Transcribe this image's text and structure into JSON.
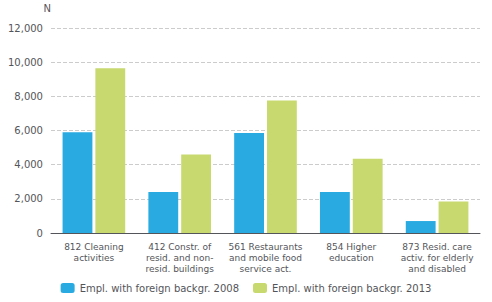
{
  "chart_data": {
    "type": "bar",
    "categories": [
      "812 Cleaning\nactivities",
      "412 Constr. of\nresid. and non-\nresid. buildings",
      "561 Restaurants\nand mobile food\nservice act.",
      "854 Higher\neducation",
      "873 Resid. care\nactiv. for elderly\nand disabled"
    ],
    "series": [
      {
        "name": "Empl. with foreign backgr. 2008",
        "color": "#29ABE2",
        "values": [
          5900,
          2400,
          5850,
          2400,
          700
        ]
      },
      {
        "name": "Empl. with foreign backgr. 2013",
        "color": "#C8D96F",
        "values": [
          9650,
          4600,
          7750,
          4350,
          1850
        ]
      }
    ],
    "ylabel": "N",
    "ylim": [
      0,
      12000
    ],
    "yticks": [
      0,
      {
        "value": 2000,
        "label": "2,000"
      },
      {
        "value": 4000,
        "label": "4,000"
      },
      {
        "value": 6000,
        "label": "6,000"
      },
      {
        "value": 8000,
        "label": "8,000"
      },
      {
        "value": 10000,
        "label": "10,000"
      },
      {
        "value": 12000,
        "label": "12,000"
      }
    ],
    "grid": true,
    "legend": "bottom"
  }
}
